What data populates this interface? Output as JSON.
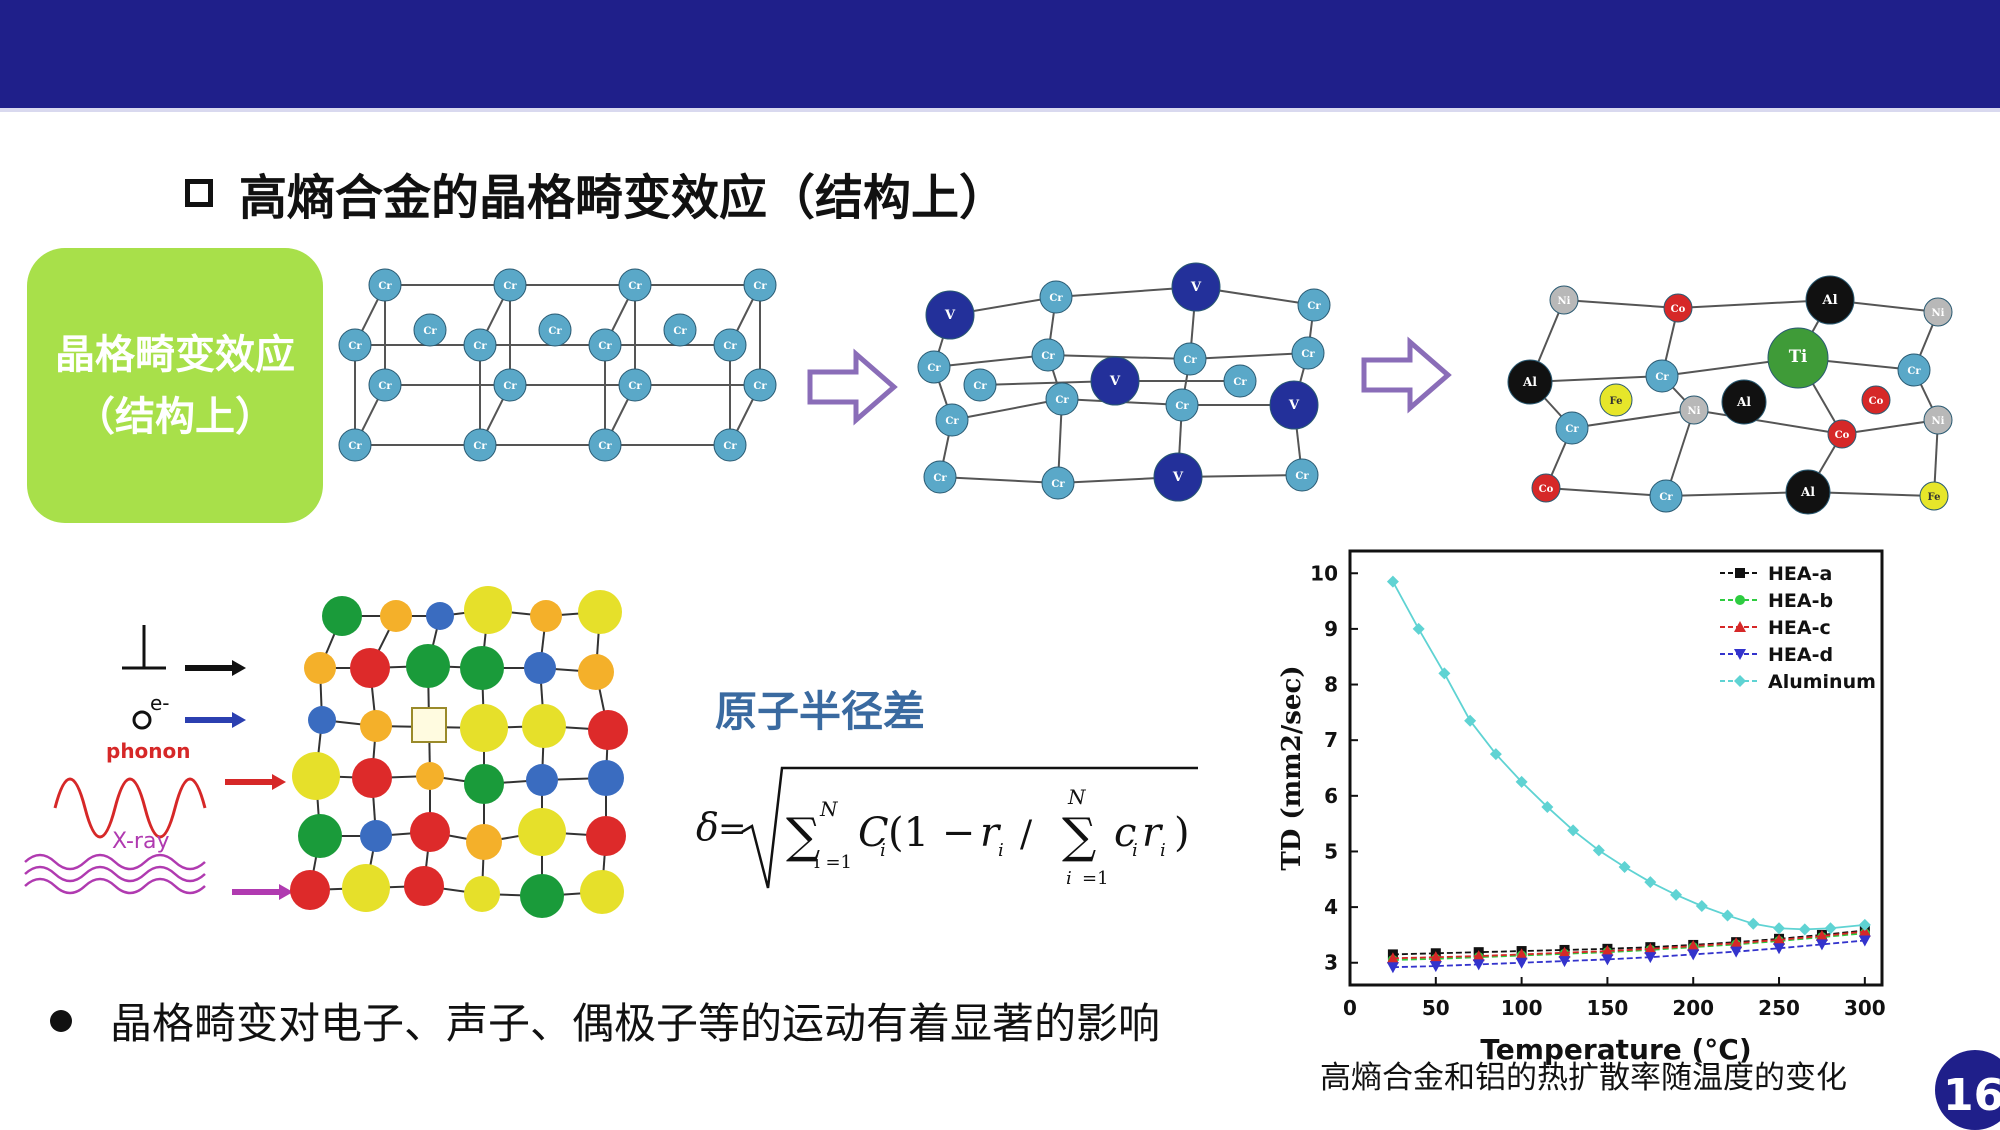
{
  "slide": {
    "heading": "高熵合金的晶格畸变效应（结构上）",
    "side_box": {
      "line1": "晶格畸变效应",
      "line2": "（结构上）"
    },
    "formula_title": "原子半径差",
    "bullet": "晶格畸变对电子、声子、偶极子等的运动有着显著的影响",
    "caption": "高熵合金和铝的热扩散率随温度的变化",
    "page_number": "16"
  },
  "lattice_labels": {
    "cr": "Cr",
    "v": "V",
    "ni": "Ni",
    "co": "Co",
    "al": "Al",
    "ti": "Ti",
    "fe": "Fe"
  },
  "scatter_labels": {
    "electron": "e-",
    "phonon": "phonon",
    "xray": "X-ray"
  },
  "colors": {
    "banner": "#1f1f8a",
    "cr": "#5aa8c8",
    "v": "#23309a",
    "ni": "#b8b8b8",
    "co": "#d62828",
    "al": "#111111",
    "ti": "#3f9b38",
    "fe": "#e6e62a",
    "arrow": "#8a6db8",
    "green_box": "#a8e04a"
  },
  "chart_data": {
    "type": "line",
    "xlabel": "Temperature (°C)",
    "ylabel": "TD (mm2/sec)",
    "xlim": [
      0,
      310
    ],
    "ylim": [
      2.6,
      10.4
    ],
    "x_ticks": [
      "0",
      "50",
      "100",
      "150",
      "200",
      "250",
      "300"
    ],
    "y_ticks": [
      "3",
      "4",
      "5",
      "6",
      "7",
      "8",
      "9",
      "10"
    ],
    "legend_position": "top-right",
    "series": [
      {
        "name": "HEA-a",
        "color": "#111111",
        "marker": "square",
        "x": [
          25,
          50,
          75,
          100,
          125,
          150,
          175,
          200,
          225,
          250,
          275,
          300
        ],
        "y": [
          3.15,
          3.17,
          3.19,
          3.21,
          3.23,
          3.25,
          3.28,
          3.32,
          3.37,
          3.43,
          3.5,
          3.58
        ]
      },
      {
        "name": "HEA-b",
        "color": "#2ecc40",
        "marker": "circle",
        "x": [
          25,
          50,
          75,
          100,
          125,
          150,
          175,
          200,
          225,
          250,
          275,
          300
        ],
        "y": [
          3.05,
          3.07,
          3.1,
          3.13,
          3.16,
          3.19,
          3.23,
          3.28,
          3.33,
          3.39,
          3.46,
          3.53
        ]
      },
      {
        "name": "HEA-c",
        "color": "#d62828",
        "marker": "triangle",
        "x": [
          25,
          50,
          75,
          100,
          125,
          150,
          175,
          200,
          225,
          250,
          275,
          300
        ],
        "y": [
          3.08,
          3.1,
          3.12,
          3.15,
          3.18,
          3.21,
          3.25,
          3.3,
          3.35,
          3.41,
          3.48,
          3.56
        ]
      },
      {
        "name": "HEA-d",
        "color": "#3333cc",
        "marker": "triangle-down",
        "x": [
          25,
          50,
          75,
          100,
          125,
          150,
          175,
          200,
          225,
          250,
          275,
          300
        ],
        "y": [
          2.92,
          2.94,
          2.97,
          3.0,
          3.03,
          3.06,
          3.1,
          3.15,
          3.2,
          3.26,
          3.33,
          3.4
        ]
      },
      {
        "name": "Aluminum",
        "color": "#5fd3d3",
        "marker": "diamond",
        "x": [
          25,
          40,
          55,
          70,
          85,
          100,
          115,
          130,
          145,
          160,
          175,
          190,
          205,
          220,
          235,
          250,
          265,
          280,
          300
        ],
        "y": [
          9.85,
          9.0,
          8.2,
          7.35,
          6.75,
          6.25,
          5.8,
          5.38,
          5.02,
          4.72,
          4.45,
          4.22,
          4.02,
          3.85,
          3.7,
          3.62,
          3.6,
          3.62,
          3.68
        ]
      }
    ]
  }
}
